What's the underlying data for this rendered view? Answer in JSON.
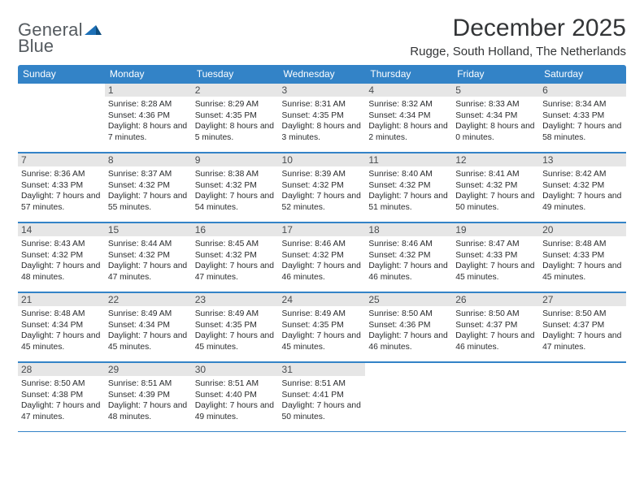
{
  "logo": {
    "general": "General",
    "blue": "Blue"
  },
  "title": "December 2025",
  "location": "Rugge, South Holland, The Netherlands",
  "colors": {
    "header_bg": "#3383c7",
    "header_text": "#ffffff",
    "daynum_bg": "#e6e6e6",
    "cell_border": "#3383c7",
    "text": "#2a2c2e",
    "title": "#333537",
    "logo_gray": "#555b60",
    "logo_blue": "#1d70b7"
  },
  "weekdays": [
    "Sunday",
    "Monday",
    "Tuesday",
    "Wednesday",
    "Thursday",
    "Friday",
    "Saturday"
  ],
  "weeks": [
    [
      null,
      {
        "n": "1",
        "sr": "Sunrise: 8:28 AM",
        "ss": "Sunset: 4:36 PM",
        "dl": "Daylight: 8 hours and 7 minutes."
      },
      {
        "n": "2",
        "sr": "Sunrise: 8:29 AM",
        "ss": "Sunset: 4:35 PM",
        "dl": "Daylight: 8 hours and 5 minutes."
      },
      {
        "n": "3",
        "sr": "Sunrise: 8:31 AM",
        "ss": "Sunset: 4:35 PM",
        "dl": "Daylight: 8 hours and 3 minutes."
      },
      {
        "n": "4",
        "sr": "Sunrise: 8:32 AM",
        "ss": "Sunset: 4:34 PM",
        "dl": "Daylight: 8 hours and 2 minutes."
      },
      {
        "n": "5",
        "sr": "Sunrise: 8:33 AM",
        "ss": "Sunset: 4:34 PM",
        "dl": "Daylight: 8 hours and 0 minutes."
      },
      {
        "n": "6",
        "sr": "Sunrise: 8:34 AM",
        "ss": "Sunset: 4:33 PM",
        "dl": "Daylight: 7 hours and 58 minutes."
      }
    ],
    [
      {
        "n": "7",
        "sr": "Sunrise: 8:36 AM",
        "ss": "Sunset: 4:33 PM",
        "dl": "Daylight: 7 hours and 57 minutes."
      },
      {
        "n": "8",
        "sr": "Sunrise: 8:37 AM",
        "ss": "Sunset: 4:32 PM",
        "dl": "Daylight: 7 hours and 55 minutes."
      },
      {
        "n": "9",
        "sr": "Sunrise: 8:38 AM",
        "ss": "Sunset: 4:32 PM",
        "dl": "Daylight: 7 hours and 54 minutes."
      },
      {
        "n": "10",
        "sr": "Sunrise: 8:39 AM",
        "ss": "Sunset: 4:32 PM",
        "dl": "Daylight: 7 hours and 52 minutes."
      },
      {
        "n": "11",
        "sr": "Sunrise: 8:40 AM",
        "ss": "Sunset: 4:32 PM",
        "dl": "Daylight: 7 hours and 51 minutes."
      },
      {
        "n": "12",
        "sr": "Sunrise: 8:41 AM",
        "ss": "Sunset: 4:32 PM",
        "dl": "Daylight: 7 hours and 50 minutes."
      },
      {
        "n": "13",
        "sr": "Sunrise: 8:42 AM",
        "ss": "Sunset: 4:32 PM",
        "dl": "Daylight: 7 hours and 49 minutes."
      }
    ],
    [
      {
        "n": "14",
        "sr": "Sunrise: 8:43 AM",
        "ss": "Sunset: 4:32 PM",
        "dl": "Daylight: 7 hours and 48 minutes."
      },
      {
        "n": "15",
        "sr": "Sunrise: 8:44 AM",
        "ss": "Sunset: 4:32 PM",
        "dl": "Daylight: 7 hours and 47 minutes."
      },
      {
        "n": "16",
        "sr": "Sunrise: 8:45 AM",
        "ss": "Sunset: 4:32 PM",
        "dl": "Daylight: 7 hours and 47 minutes."
      },
      {
        "n": "17",
        "sr": "Sunrise: 8:46 AM",
        "ss": "Sunset: 4:32 PM",
        "dl": "Daylight: 7 hours and 46 minutes."
      },
      {
        "n": "18",
        "sr": "Sunrise: 8:46 AM",
        "ss": "Sunset: 4:32 PM",
        "dl": "Daylight: 7 hours and 46 minutes."
      },
      {
        "n": "19",
        "sr": "Sunrise: 8:47 AM",
        "ss": "Sunset: 4:33 PM",
        "dl": "Daylight: 7 hours and 45 minutes."
      },
      {
        "n": "20",
        "sr": "Sunrise: 8:48 AM",
        "ss": "Sunset: 4:33 PM",
        "dl": "Daylight: 7 hours and 45 minutes."
      }
    ],
    [
      {
        "n": "21",
        "sr": "Sunrise: 8:48 AM",
        "ss": "Sunset: 4:34 PM",
        "dl": "Daylight: 7 hours and 45 minutes."
      },
      {
        "n": "22",
        "sr": "Sunrise: 8:49 AM",
        "ss": "Sunset: 4:34 PM",
        "dl": "Daylight: 7 hours and 45 minutes."
      },
      {
        "n": "23",
        "sr": "Sunrise: 8:49 AM",
        "ss": "Sunset: 4:35 PM",
        "dl": "Daylight: 7 hours and 45 minutes."
      },
      {
        "n": "24",
        "sr": "Sunrise: 8:49 AM",
        "ss": "Sunset: 4:35 PM",
        "dl": "Daylight: 7 hours and 45 minutes."
      },
      {
        "n": "25",
        "sr": "Sunrise: 8:50 AM",
        "ss": "Sunset: 4:36 PM",
        "dl": "Daylight: 7 hours and 46 minutes."
      },
      {
        "n": "26",
        "sr": "Sunrise: 8:50 AM",
        "ss": "Sunset: 4:37 PM",
        "dl": "Daylight: 7 hours and 46 minutes."
      },
      {
        "n": "27",
        "sr": "Sunrise: 8:50 AM",
        "ss": "Sunset: 4:37 PM",
        "dl": "Daylight: 7 hours and 47 minutes."
      }
    ],
    [
      {
        "n": "28",
        "sr": "Sunrise: 8:50 AM",
        "ss": "Sunset: 4:38 PM",
        "dl": "Daylight: 7 hours and 47 minutes."
      },
      {
        "n": "29",
        "sr": "Sunrise: 8:51 AM",
        "ss": "Sunset: 4:39 PM",
        "dl": "Daylight: 7 hours and 48 minutes."
      },
      {
        "n": "30",
        "sr": "Sunrise: 8:51 AM",
        "ss": "Sunset: 4:40 PM",
        "dl": "Daylight: 7 hours and 49 minutes."
      },
      {
        "n": "31",
        "sr": "Sunrise: 8:51 AM",
        "ss": "Sunset: 4:41 PM",
        "dl": "Daylight: 7 hours and 50 minutes."
      },
      null,
      null,
      null
    ]
  ]
}
